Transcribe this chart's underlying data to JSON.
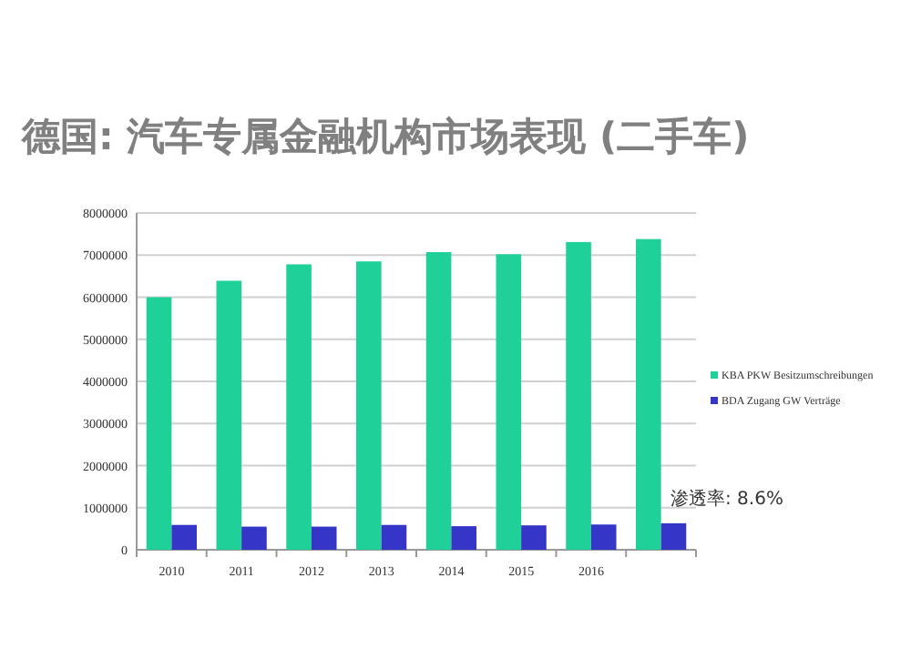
{
  "chart_data": {
    "type": "bar",
    "title": "德国: 汽车专属金融机构市场表现 (二手车)",
    "categories": [
      "2010",
      "2011",
      "2012",
      "2013",
      "2014",
      "2015",
      "2016",
      null
    ],
    "series": [
      {
        "name": "KBA PKW Besitzumschreibungen",
        "color": "#1fd198",
        "values": [
          6000000,
          6390000,
          6780000,
          6850000,
          7070000,
          7020000,
          7310000,
          7380000
        ]
      },
      {
        "name": "BDA Zugang GW Verträge",
        "color": "#3535c8",
        "values": [
          590000,
          550000,
          550000,
          590000,
          560000,
          580000,
          600000,
          630000
        ]
      }
    ],
    "ylim": [
      0,
      8000000
    ],
    "yticks": [
      0,
      1000000,
      2000000,
      3000000,
      4000000,
      5000000,
      6000000,
      7000000,
      8000000
    ],
    "grid": "y",
    "legend": "right",
    "annotations": [
      "渗透率: 8.6%"
    ]
  }
}
